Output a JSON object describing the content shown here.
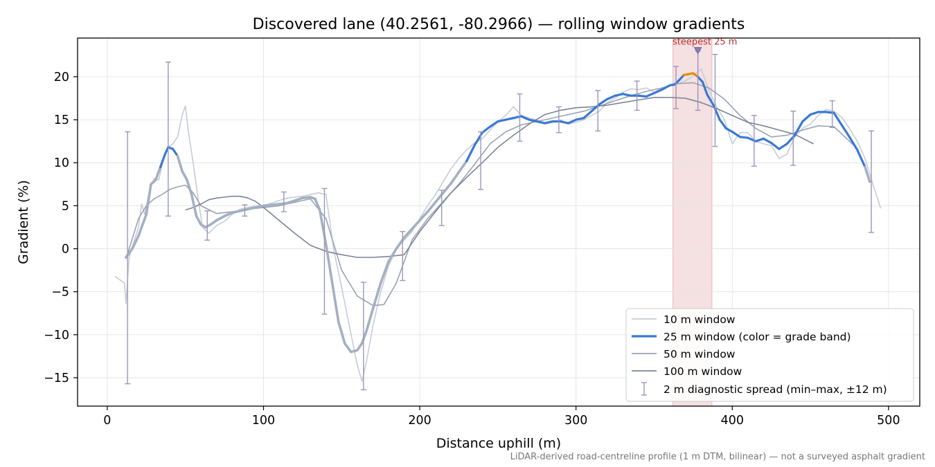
{
  "chart_data": {
    "type": "line",
    "title": "Discovered lane (40.2561, -80.2966) — rolling window gradients",
    "xlabel": "Distance uphill (m)",
    "ylabel": "Gradient (%)",
    "footnote": "LiDAR-derived road-centreline profile (1 m DTM, bilinear) — not a surveyed asphalt gradient",
    "xlim": [
      -19,
      520
    ],
    "ylim": [
      -18.3,
      24.5
    ],
    "xticks": [
      0,
      100,
      200,
      300,
      400,
      500
    ],
    "yticks": [
      -15,
      -10,
      -5,
      0,
      5,
      10,
      15,
      20
    ],
    "grid": true,
    "legend_position": "lower-right",
    "highlight": {
      "x_range": [
        362,
        387
      ],
      "label": "steepest 25 m",
      "marker": [
        378,
        23
      ],
      "color": "#d9828b"
    },
    "colors": {
      "w10": "#c5ccd6",
      "w25_low": "#a3b0c2",
      "w25_mid": "#3a78d4",
      "w25_high": "#e08f00",
      "w50": "#98a3b3",
      "w100": "#7b8495",
      "spread": "#9a96bb",
      "highlight_text": "#c03030"
    },
    "series": [
      {
        "name": "10 m window",
        "x": [
          5,
          8,
          11,
          12,
          14,
          17,
          20,
          22,
          24,
          27,
          30,
          33,
          36,
          39,
          42,
          45,
          48,
          50,
          52,
          55,
          58,
          61,
          65,
          70,
          75,
          80,
          85,
          90,
          95,
          100,
          105,
          110,
          115,
          120,
          125,
          130,
          135,
          140,
          145,
          150,
          155,
          160,
          163,
          166,
          170,
          175,
          180,
          185,
          190,
          195,
          200,
          205,
          210,
          215,
          220,
          225,
          230,
          235,
          240,
          245,
          250,
          255,
          260,
          265,
          270,
          275,
          280,
          285,
          290,
          295,
          300,
          305,
          310,
          315,
          320,
          325,
          330,
          335,
          340,
          345,
          350,
          355,
          360,
          365,
          370,
          375,
          380,
          385,
          390,
          395,
          400,
          405,
          410,
          415,
          420,
          425,
          430,
          435,
          440,
          445,
          450,
          455,
          460,
          465,
          470,
          475,
          480,
          485,
          490,
          495
        ],
        "y": [
          -3.2,
          -3.6,
          -4.0,
          -6.4,
          -1.0,
          0.8,
          2.5,
          5.2,
          4.0,
          6.8,
          8.2,
          8.0,
          10.5,
          11.8,
          12.2,
          13.0,
          15.6,
          16.6,
          13.5,
          10.0,
          6.0,
          2.5,
          1.8,
          2.7,
          3.2,
          4.0,
          4.6,
          4.8,
          5.0,
          5.0,
          5.3,
          5.6,
          5.9,
          6.0,
          6.1,
          6.3,
          6.5,
          6.3,
          -0.2,
          -4.5,
          -9.0,
          -13.5,
          -15.4,
          -13.0,
          -9.0,
          -5.0,
          -2.0,
          0.0,
          1.0,
          2.0,
          3.5,
          5.0,
          6.3,
          7.8,
          9.3,
          10.5,
          11.5,
          12.3,
          12.8,
          13.8,
          14.8,
          15.5,
          16.5,
          15.5,
          15.2,
          15.0,
          14.5,
          14.7,
          15.0,
          14.5,
          14.7,
          15.0,
          15.5,
          16.0,
          17.0,
          17.5,
          18.2,
          18.6,
          18.5,
          18.7,
          18.2,
          18.7,
          19.0,
          19.2,
          19.5,
          20.1,
          20.9,
          18.5,
          16.5,
          15.0,
          12.2,
          13.5,
          13.5,
          12.5,
          12.2,
          12.0,
          10.5,
          11.0,
          13.0,
          14.0,
          14.5,
          15.5,
          16.2,
          16.0,
          15.3,
          14.0,
          12.5,
          10.5,
          7.5,
          4.7
        ]
      },
      {
        "name": "25 m window (color = grade band)",
        "x": [
          12,
          16,
          20,
          25,
          28,
          31,
          34,
          37,
          39,
          42,
          45,
          48,
          51,
          54,
          57,
          60,
          63,
          66,
          70,
          75,
          80,
          85,
          90,
          95,
          100,
          105,
          110,
          115,
          120,
          125,
          130,
          133,
          136,
          140,
          144,
          148,
          152,
          156,
          160,
          163,
          166,
          170,
          175,
          180,
          185,
          190,
          195,
          200,
          205,
          210,
          215,
          220,
          225,
          230,
          235,
          240,
          245,
          250,
          255,
          260,
          265,
          270,
          275,
          280,
          285,
          290,
          295,
          300,
          305,
          310,
          315,
          320,
          325,
          330,
          335,
          340,
          345,
          350,
          355,
          360,
          363,
          366,
          369,
          372,
          375,
          378,
          381,
          384,
          388,
          392,
          396,
          400,
          405,
          410,
          415,
          420,
          425,
          430,
          435,
          440,
          445,
          450,
          455,
          460,
          465,
          470,
          475,
          480,
          485,
          488
        ],
        "y": [
          -1.0,
          0.0,
          1.5,
          4.0,
          7.5,
          8.0,
          9.5,
          11.0,
          11.8,
          11.6,
          10.8,
          9.0,
          8.0,
          6.3,
          3.8,
          2.8,
          2.5,
          2.8,
          3.3,
          3.8,
          4.2,
          4.4,
          4.6,
          4.8,
          5.0,
          5.1,
          5.2,
          5.3,
          5.6,
          5.9,
          6.0,
          5.8,
          4.5,
          0.5,
          -4.0,
          -8.5,
          -11.0,
          -12.0,
          -11.8,
          -11.0,
          -9.5,
          -7.0,
          -4.0,
          -1.5,
          0.0,
          1.3,
          2.3,
          3.3,
          4.3,
          5.4,
          6.5,
          7.6,
          8.9,
          10.2,
          12.0,
          13.5,
          14.2,
          14.8,
          15.0,
          15.2,
          15.4,
          15.0,
          14.8,
          14.6,
          14.8,
          14.8,
          14.6,
          15.0,
          15.2,
          16.0,
          16.8,
          17.4,
          17.8,
          18.0,
          17.8,
          17.8,
          17.7,
          18.1,
          18.5,
          19.0,
          19.1,
          19.6,
          20.2,
          20.3,
          20.4,
          20.0,
          19.4,
          17.9,
          16.7,
          15.0,
          14.0,
          13.6,
          13.0,
          12.9,
          12.5,
          12.8,
          12.3,
          11.6,
          12.2,
          13.2,
          14.8,
          15.6,
          15.9,
          15.9,
          15.8,
          14.4,
          13.0,
          11.5,
          9.5,
          7.8
        ]
      },
      {
        "name": "50 m window",
        "x": [
          12,
          20,
          25,
          30,
          35,
          40,
          45,
          50,
          55,
          60,
          70,
          80,
          90,
          100,
          110,
          120,
          130,
          140,
          150,
          160,
          170,
          177,
          185,
          195,
          205,
          215,
          225,
          235,
          245,
          255,
          265,
          275,
          285,
          295,
          305,
          315,
          325,
          335,
          345,
          355,
          365,
          375,
          385,
          395,
          405,
          415,
          425,
          435,
          445,
          455,
          465,
          478
        ],
        "y": [
          -1.2,
          3.5,
          5.0,
          5.8,
          6.3,
          6.9,
          7.2,
          7.4,
          6.5,
          5.0,
          4.1,
          4.3,
          4.6,
          4.8,
          5.0,
          5.4,
          5.8,
          3.5,
          -2.5,
          -5.5,
          -6.6,
          -6.5,
          -4.0,
          1.0,
          3.5,
          5.5,
          7.5,
          9.8,
          12.2,
          13.6,
          14.4,
          14.8,
          15.2,
          15.6,
          16.0,
          16.6,
          17.2,
          17.8,
          18.3,
          18.7,
          19.2,
          19.3,
          18.7,
          17.4,
          15.5,
          14.0,
          13.0,
          13.2,
          13.8,
          14.3,
          14.2,
          12.0
        ]
      },
      {
        "name": "100 m window",
        "x": [
          50,
          55,
          60,
          65,
          70,
          75,
          80,
          85,
          90,
          95,
          100,
          110,
          120,
          130,
          140,
          150,
          160,
          170,
          180,
          190,
          200,
          210,
          220,
          230,
          240,
          250,
          260,
          270,
          280,
          290,
          300,
          310,
          320,
          330,
          340,
          350,
          360,
          370,
          380,
          390,
          400,
          410,
          420,
          430,
          440,
          452
        ],
        "y": [
          4.5,
          4.8,
          5.2,
          5.7,
          5.9,
          6.0,
          6.1,
          6.1,
          5.9,
          5.5,
          4.8,
          3.3,
          1.8,
          0.4,
          -0.3,
          -0.7,
          -1.0,
          -1.0,
          -0.9,
          -0.7,
          2.0,
          4.3,
          6.5,
          8.3,
          10.0,
          11.8,
          13.2,
          14.5,
          15.6,
          16.1,
          16.4,
          16.5,
          16.7,
          17.0,
          17.3,
          17.6,
          17.6,
          17.5,
          17.0,
          16.3,
          15.5,
          14.7,
          14.3,
          13.8,
          13.3,
          12.2
        ]
      }
    ],
    "error_bars": {
      "name": "2 m diagnostic spread (min–max, ±12 m)",
      "x": [
        13,
        39,
        64,
        88,
        113,
        139,
        164,
        189,
        214,
        239,
        264,
        289,
        314,
        339,
        364,
        378,
        389,
        414,
        439,
        464,
        489
      ],
      "y": [
        -1.0,
        11.8,
        2.7,
        4.5,
        5.3,
        6.0,
        -11.8,
        -0.5,
        4.8,
        11.0,
        14.0,
        14.8,
        16.1,
        17.8,
        19.0,
        20.4,
        17.4,
        12.3,
        12.0,
        15.7,
        7.8
      ],
      "ymin": [
        -15.7,
        3.8,
        1.0,
        3.8,
        4.3,
        -7.6,
        -16.4,
        -3.7,
        2.7,
        6.9,
        12.5,
        13.5,
        13.7,
        16.1,
        16.3,
        16.1,
        11.9,
        9.6,
        9.7,
        14.1,
        1.9
      ],
      "ymax": [
        13.6,
        21.7,
        4.4,
        5.1,
        6.6,
        7.0,
        -3.9,
        2.0,
        6.8,
        13.6,
        18.0,
        16.5,
        18.4,
        19.5,
        21.2,
        23.0,
        22.6,
        15.5,
        16.0,
        17.2,
        13.7
      ]
    }
  }
}
